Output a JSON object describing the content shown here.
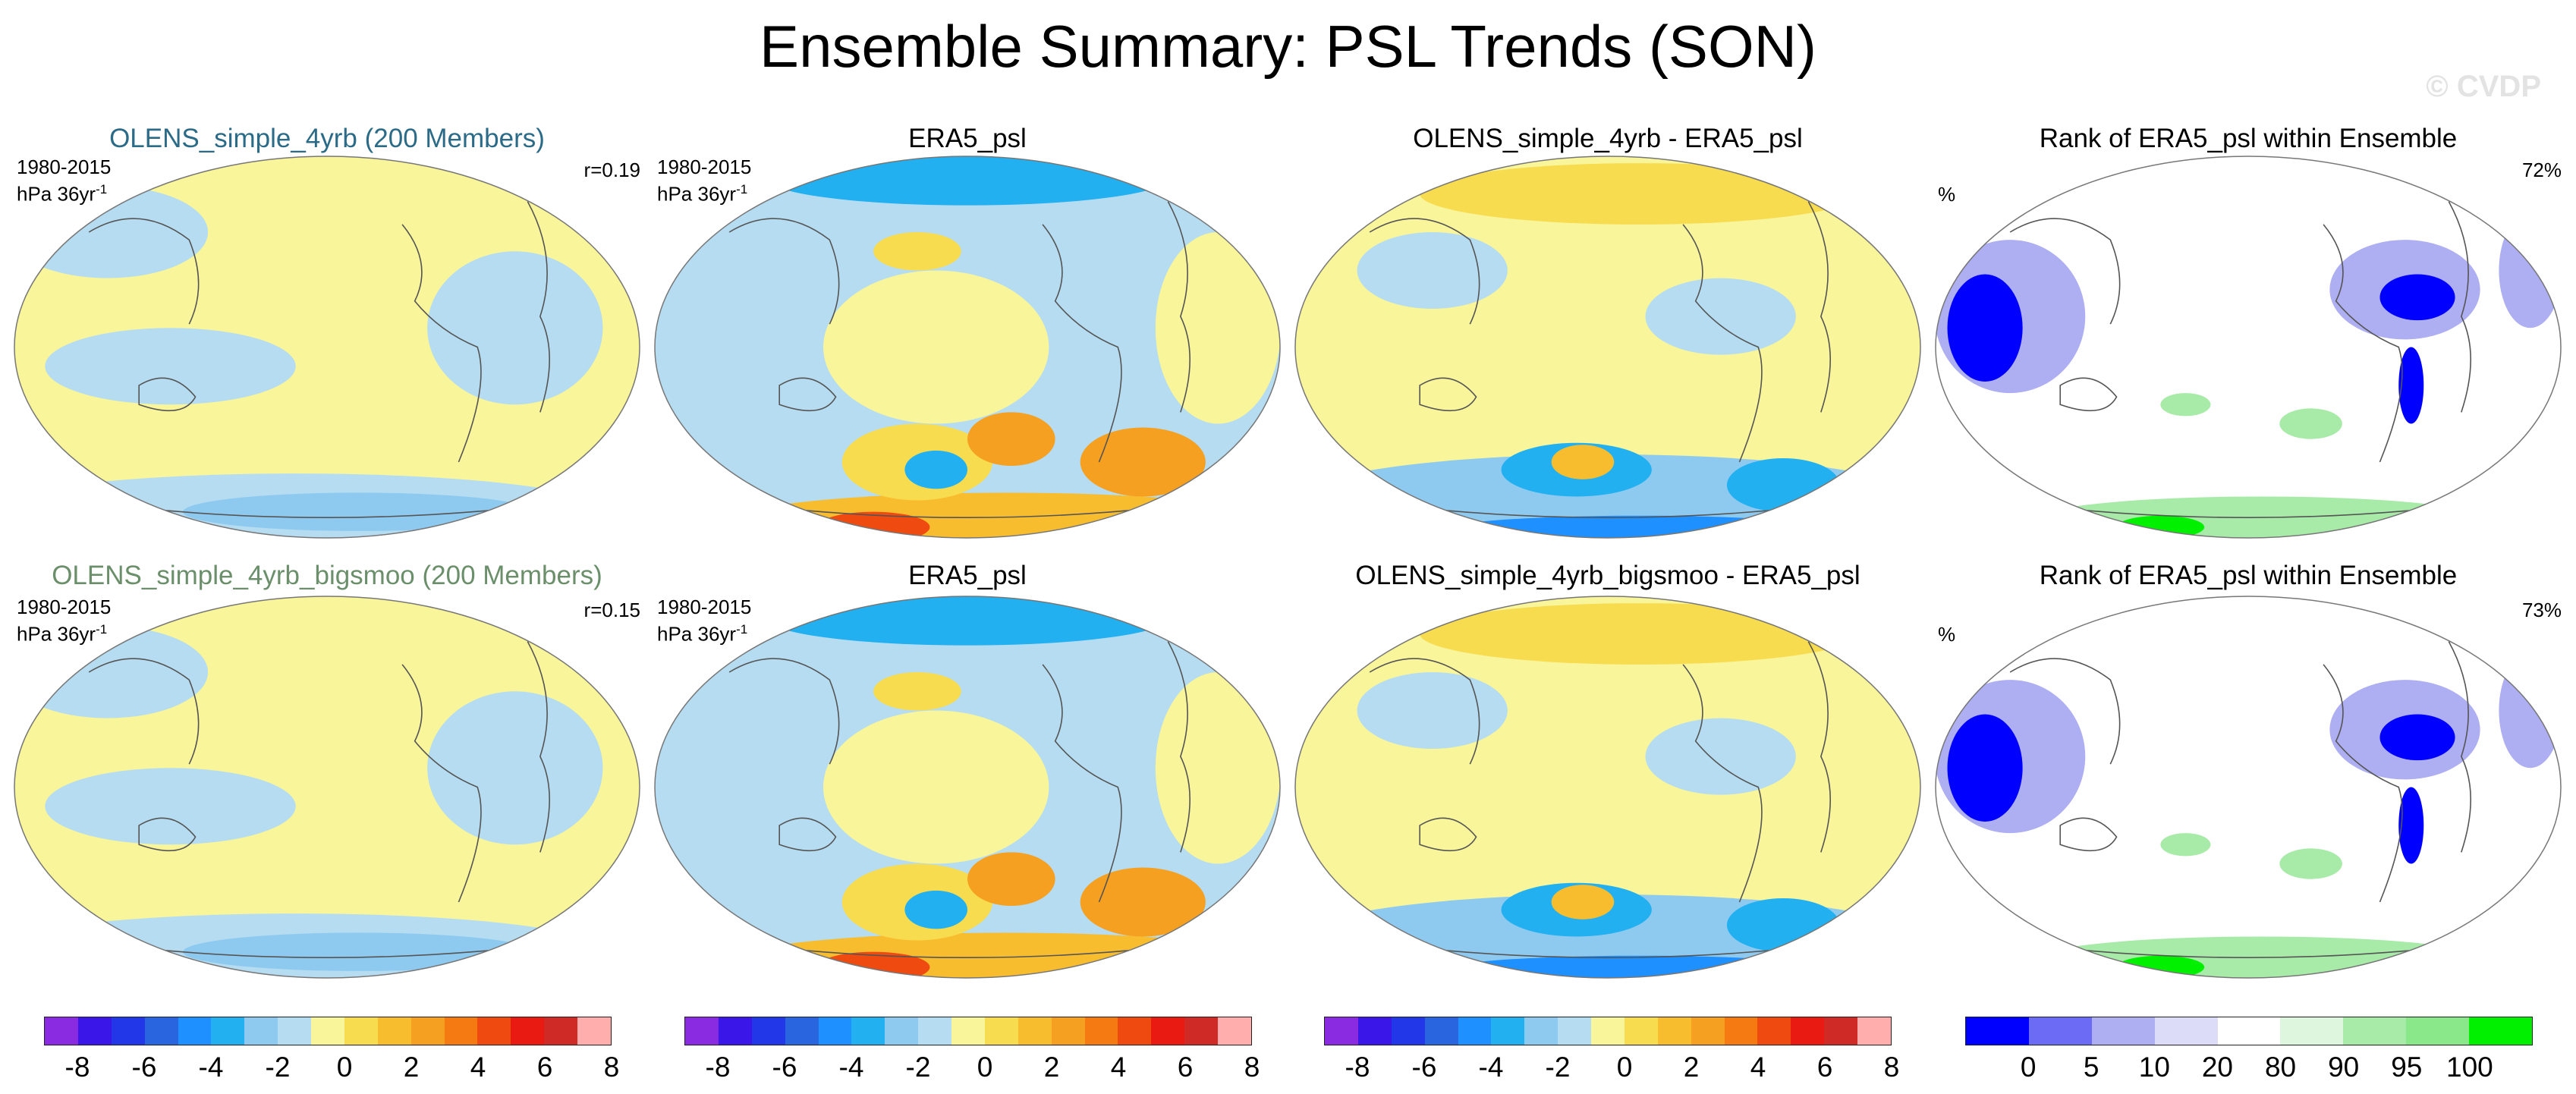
{
  "title": "Ensemble Summary: PSL Trends (SON)",
  "watermark": "© CVDP",
  "rows": [
    {
      "panels": [
        {
          "title": "OLENS_simple_4yrb (200 Members)",
          "title_color": "#2b6b88",
          "period": "1980-2015",
          "units": "hPa 36yr",
          "units_exp": "-1",
          "stat": "r=0.19",
          "kind": "ens"
        },
        {
          "title": "ERA5_psl",
          "title_color": "#000000",
          "period": "1980-2015",
          "units": "hPa 36yr",
          "units_exp": "-1",
          "stat": "",
          "kind": "obs"
        },
        {
          "title": "OLENS_simple_4yrb - ERA5_psl",
          "title_color": "#000000",
          "period": "",
          "units": "",
          "units_exp": "",
          "stat": "",
          "kind": "diff"
        },
        {
          "title": "Rank of ERA5_psl within Ensemble",
          "title_color": "#000000",
          "period": "",
          "units": "%",
          "units_exp": "",
          "stat": "72%",
          "kind": "rank"
        }
      ]
    },
    {
      "panels": [
        {
          "title": "OLENS_simple_4yrb_bigsmoo (200 Members)",
          "title_color": "#6a8f6a",
          "period": "1980-2015",
          "units": "hPa 36yr",
          "units_exp": "-1",
          "stat": "r=0.15",
          "kind": "ens"
        },
        {
          "title": "ERA5_psl",
          "title_color": "#000000",
          "period": "1980-2015",
          "units": "hPa 36yr",
          "units_exp": "-1",
          "stat": "",
          "kind": "obs"
        },
        {
          "title": "OLENS_simple_4yrb_bigsmoo - ERA5_psl",
          "title_color": "#000000",
          "period": "",
          "units": "",
          "units_exp": "",
          "stat": "",
          "kind": "diff"
        },
        {
          "title": "Rank of ERA5_psl within Ensemble",
          "title_color": "#000000",
          "period": "",
          "units": "%",
          "units_exp": "",
          "stat": "73%",
          "kind": "rank"
        }
      ]
    }
  ],
  "trend_colorbar": {
    "colors": [
      "#8a2be2",
      "#3a16e8",
      "#2238e8",
      "#2a65e0",
      "#1e90ff",
      "#22b0f0",
      "#8ecaf0",
      "#b5dcf1",
      "#f9f59a",
      "#f8dc50",
      "#f8bd2e",
      "#f5a020",
      "#f57a12",
      "#ef4a10",
      "#e81a12",
      "#cf2a25",
      "#ffadad"
    ],
    "labels": [
      "-8",
      "-6",
      "-4",
      "-2",
      "0",
      "2",
      "4",
      "6",
      "8"
    ]
  },
  "rank_colorbar": {
    "colors": [
      "#0000ff",
      "#6b6bf5",
      "#aeaef2",
      "#dcdcf8",
      "#ffffff",
      "#def5de",
      "#a8eba8",
      "#8ae78a",
      "#00f000"
    ],
    "labels": [
      "0",
      "5",
      "10",
      "20",
      "80",
      "90",
      "95",
      "100"
    ]
  },
  "fill_colors": {
    "yellow": "#f9f59a",
    "light_blue": "#b5dcf1",
    "mid_blue": "#8ecaf0",
    "blue": "#22b0f0",
    "deep_blue": "#1e90ff",
    "light_orange": "#f8dc50",
    "orange": "#f8bd2e",
    "dark_orange": "#f5a020",
    "red": "#ef4a10",
    "rank_blue": "#0000ff",
    "rank_lavender": "#aeaef2",
    "rank_green": "#a8eba8",
    "rank_bright_green": "#00f000"
  }
}
